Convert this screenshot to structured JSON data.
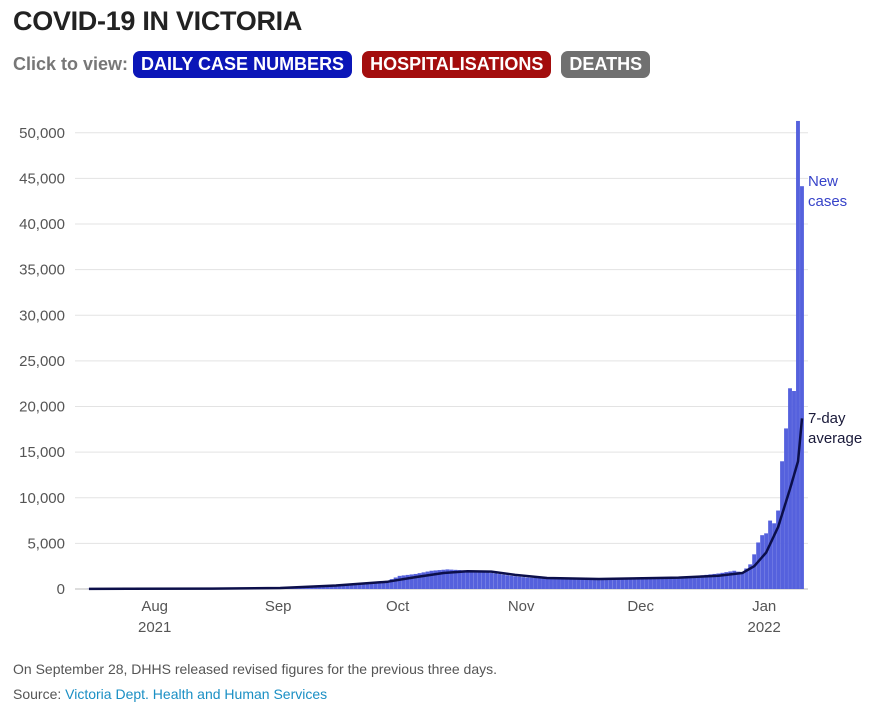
{
  "title": "COVID-19 IN VICTORIA",
  "controls": {
    "label": "Click to view:",
    "buttons": [
      {
        "label": "DAILY CASE NUMBERS",
        "color": "#0b16b8"
      },
      {
        "label": "HOSPITALISATIONS",
        "color": "#a30d0d"
      },
      {
        "label": "DEATHS",
        "color": "#707070"
      }
    ]
  },
  "colors": {
    "bars": "#5561dd",
    "average": "#0c0f4a",
    "new_cases_label": "#3743c9",
    "average_label": "#1a1a3a",
    "grid": "#e3e3e3"
  },
  "chart_data": {
    "type": "bar",
    "ylim": [
      0,
      52500
    ],
    "yticks": [
      0,
      5000,
      10000,
      15000,
      20000,
      25000,
      30000,
      35000,
      40000,
      45000,
      50000
    ],
    "ytick_labels": [
      "0",
      "5,000",
      "10,000",
      "15,000",
      "20,000",
      "25,000",
      "30,000",
      "35,000",
      "40,000",
      "45,000",
      "50,000"
    ],
    "xlim": [
      "2021-07-12",
      "2022-01-12"
    ],
    "xticks": [
      {
        "date": "2021-08-01",
        "label": "Aug",
        "sublabel": "2021"
      },
      {
        "date": "2021-09-01",
        "label": "Sep",
        "sublabel": ""
      },
      {
        "date": "2021-10-01",
        "label": "Oct",
        "sublabel": ""
      },
      {
        "date": "2021-11-01",
        "label": "Nov",
        "sublabel": ""
      },
      {
        "date": "2021-12-01",
        "label": "Dec",
        "sublabel": ""
      },
      {
        "date": "2022-01-01",
        "label": "Jan",
        "sublabel": "2022"
      }
    ],
    "grid": true,
    "series": [
      {
        "name": "New cases",
        "type": "bar",
        "points": [
          [
            "2021-07-15",
            15
          ],
          [
            "2021-08-01",
            25
          ],
          [
            "2021-08-15",
            40
          ],
          [
            "2021-08-25",
            80
          ],
          [
            "2021-09-01",
            120
          ],
          [
            "2021-09-08",
            250
          ],
          [
            "2021-09-15",
            450
          ],
          [
            "2021-09-22",
            620
          ],
          [
            "2021-09-28",
            900
          ],
          [
            "2021-10-01",
            1440
          ],
          [
            "2021-10-05",
            1650
          ],
          [
            "2021-10-09",
            2000
          ],
          [
            "2021-10-13",
            2150
          ],
          [
            "2021-10-17",
            2050
          ],
          [
            "2021-10-21",
            1900
          ],
          [
            "2021-10-25",
            1700
          ],
          [
            "2021-10-29",
            1450
          ],
          [
            "2021-11-02",
            1250
          ],
          [
            "2021-11-08",
            1150
          ],
          [
            "2021-11-14",
            1100
          ],
          [
            "2021-11-20",
            1150
          ],
          [
            "2021-11-26",
            1200
          ],
          [
            "2021-12-02",
            1250
          ],
          [
            "2021-12-08",
            1300
          ],
          [
            "2021-12-14",
            1400
          ],
          [
            "2021-12-20",
            1700
          ],
          [
            "2021-12-24",
            2000
          ],
          [
            "2021-12-26",
            1800
          ],
          [
            "2021-12-28",
            2700
          ],
          [
            "2021-12-29",
            3800
          ],
          [
            "2021-12-30",
            5100
          ],
          [
            "2021-12-31",
            5900
          ],
          [
            "2022-01-01",
            6100
          ],
          [
            "2022-01-02",
            7500
          ],
          [
            "2022-01-03",
            7200
          ],
          [
            "2022-01-04",
            8600
          ],
          [
            "2022-01-05",
            14000
          ],
          [
            "2022-01-06",
            17600
          ],
          [
            "2022-01-07",
            22000
          ],
          [
            "2022-01-08",
            21700
          ],
          [
            "2022-01-09",
            51300
          ],
          [
            "2022-01-10",
            44150
          ]
        ]
      },
      {
        "name": "7-day average",
        "type": "line",
        "points": [
          [
            "2021-07-15",
            20
          ],
          [
            "2021-08-15",
            40
          ],
          [
            "2021-09-01",
            110
          ],
          [
            "2021-09-15",
            380
          ],
          [
            "2021-09-28",
            800
          ],
          [
            "2021-10-05",
            1300
          ],
          [
            "2021-10-12",
            1750
          ],
          [
            "2021-10-18",
            1950
          ],
          [
            "2021-10-24",
            1900
          ],
          [
            "2021-10-30",
            1550
          ],
          [
            "2021-11-07",
            1200
          ],
          [
            "2021-11-20",
            1100
          ],
          [
            "2021-12-01",
            1180
          ],
          [
            "2021-12-10",
            1250
          ],
          [
            "2021-12-20",
            1450
          ],
          [
            "2021-12-26",
            1750
          ],
          [
            "2021-12-29",
            2500
          ],
          [
            "2022-01-01",
            4000
          ],
          [
            "2022-01-04",
            6800
          ],
          [
            "2022-01-07",
            11000
          ],
          [
            "2022-01-09",
            14000
          ],
          [
            "2022-01-10",
            18700
          ]
        ]
      }
    ],
    "annotations": [
      {
        "series": "New cases",
        "lines": [
          "New",
          "cases"
        ]
      },
      {
        "series": "7-day average",
        "lines": [
          "7-day",
          "average"
        ]
      }
    ]
  },
  "footnote": "On September 28, DHHS released revised figures for the previous three days.",
  "source": {
    "prefix": "Source: ",
    "link_text": "Victoria Dept. Health and Human Services"
  }
}
